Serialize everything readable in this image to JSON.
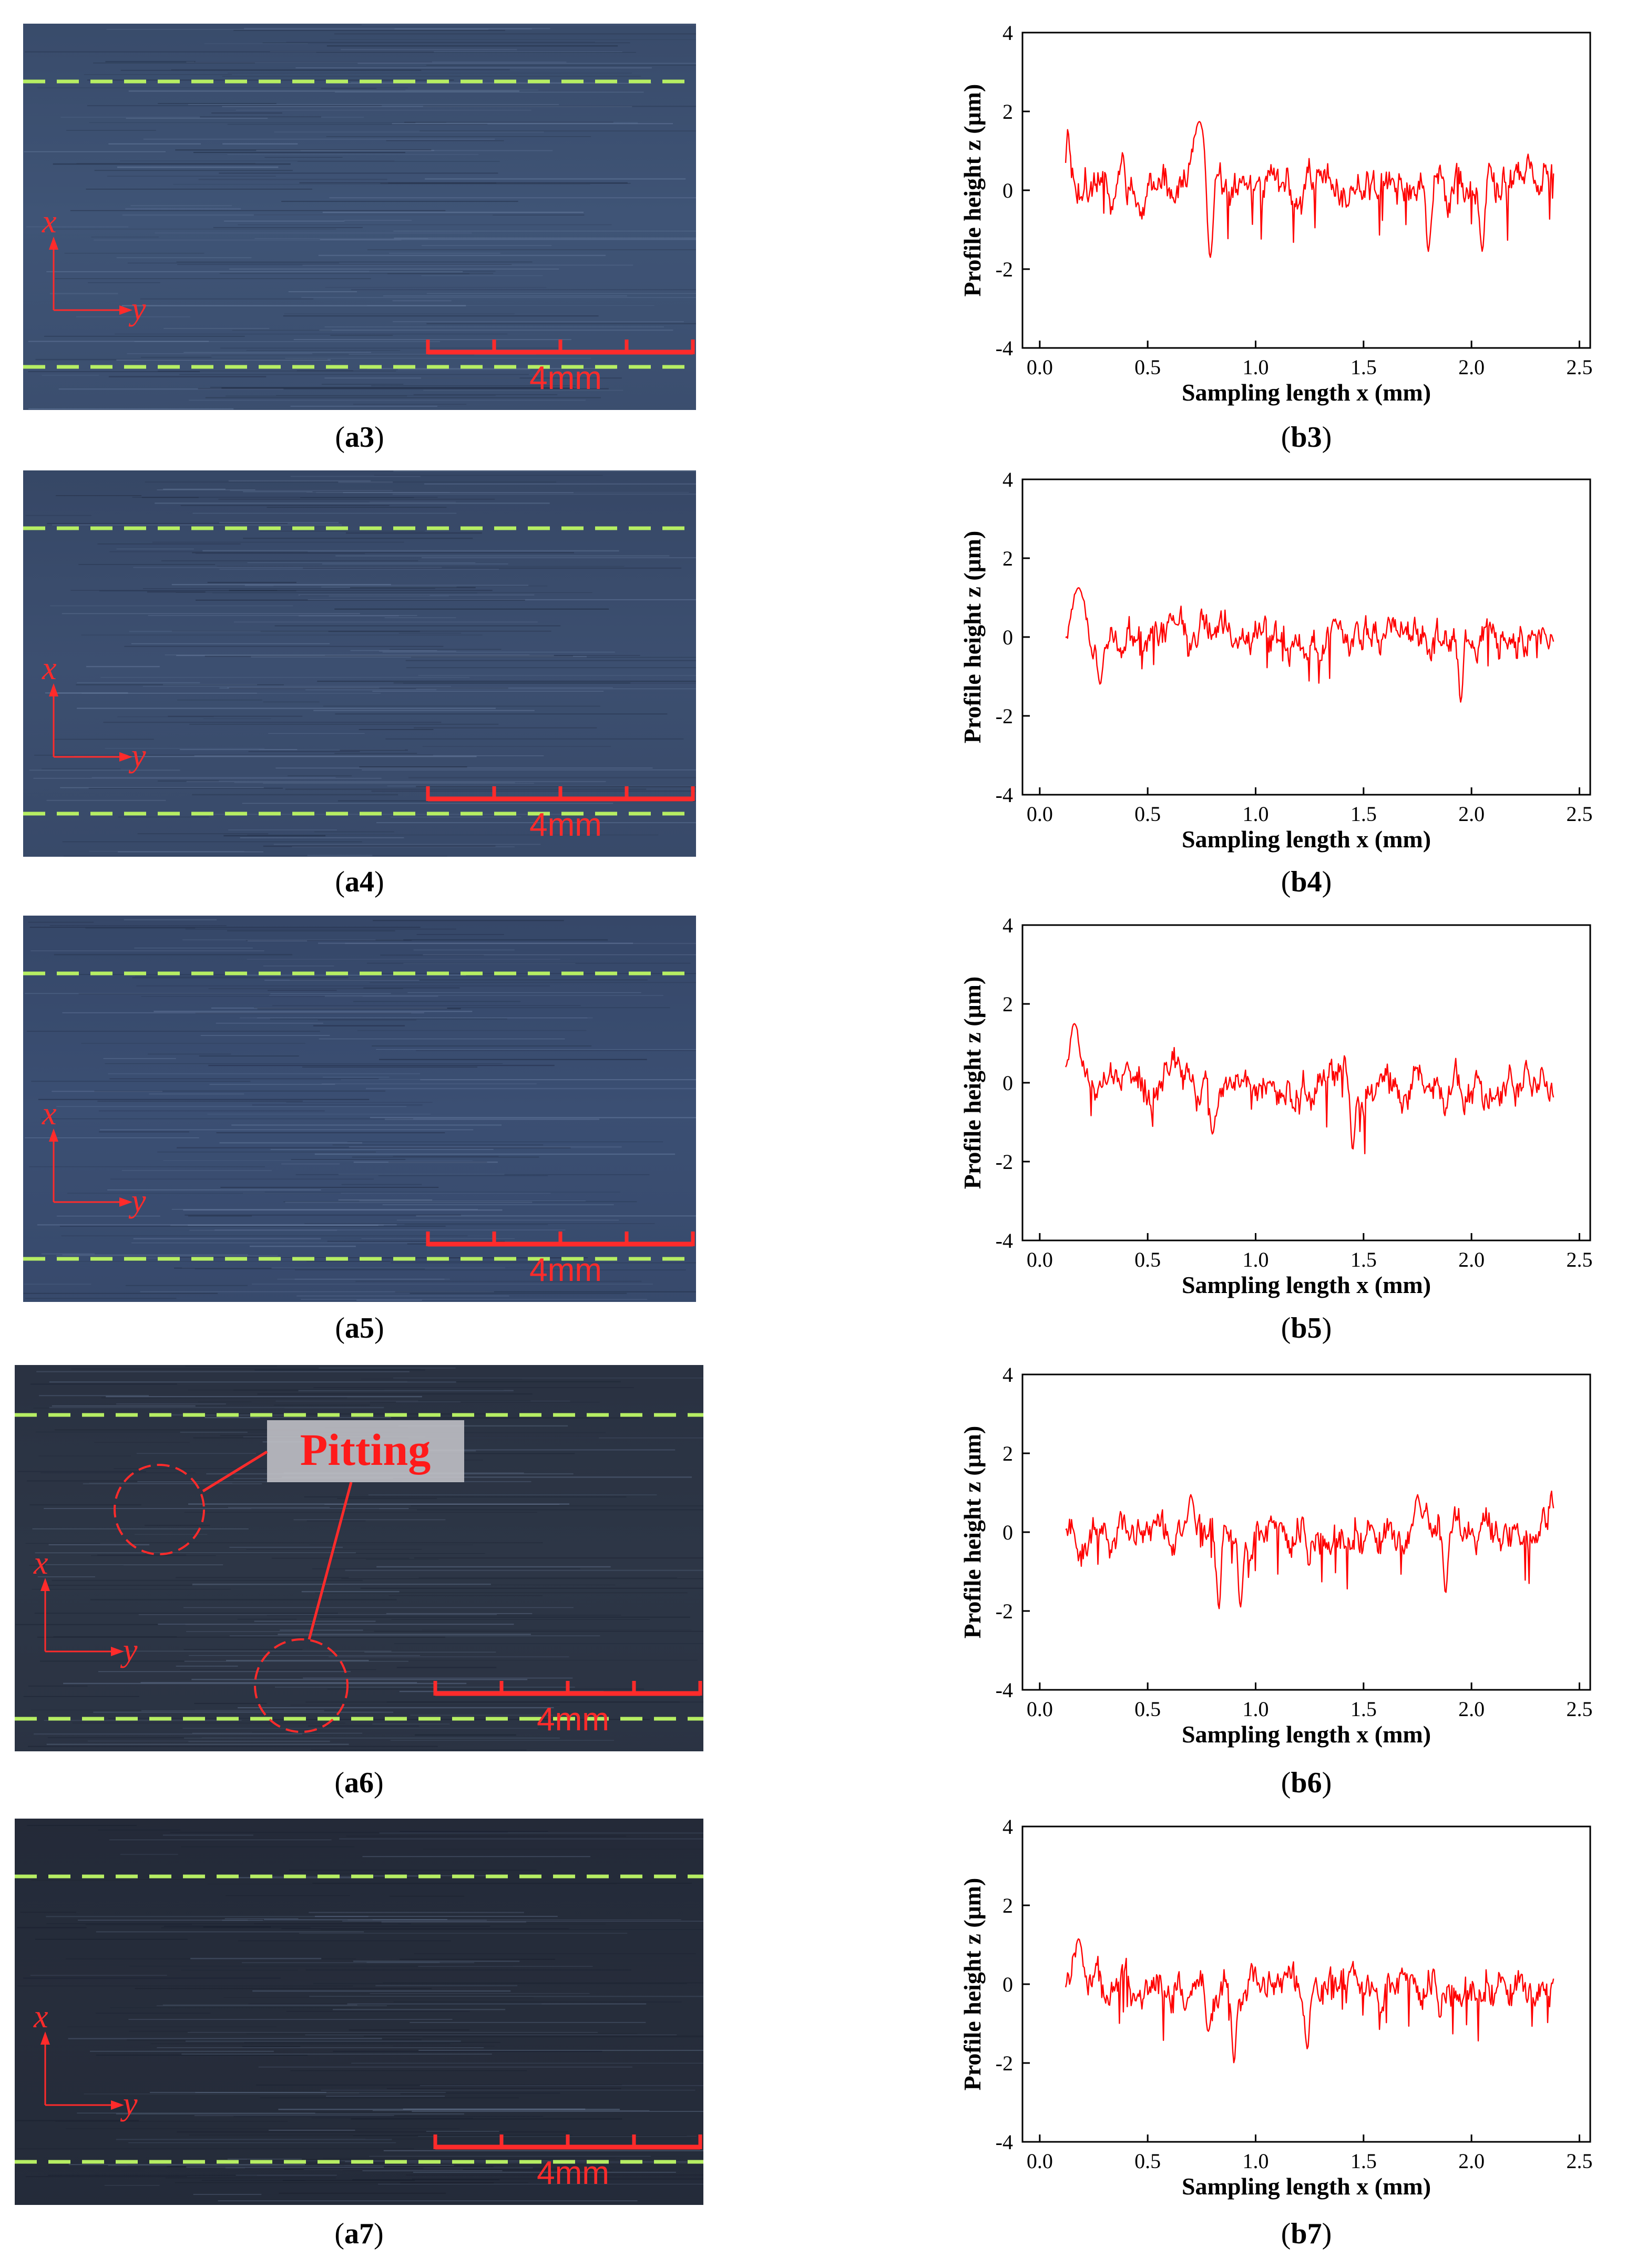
{
  "panels": [
    {
      "micro": {
        "label": "a3",
        "scale_label": "4mm",
        "axis_x": "x",
        "axis_y": "y",
        "annotation": null,
        "tone": "#3f5476"
      },
      "chart": {
        "label": "b3",
        "seed": 3,
        "base_offset": 0.2,
        "features": [
          {
            "x": 0.74,
            "z": 1.75,
            "w": 0.04
          },
          {
            "x": 0.79,
            "z": -1.7,
            "w": 0.02
          },
          {
            "x": 1.8,
            "z": -1.55,
            "w": 0.015
          },
          {
            "x": 2.05,
            "z": -1.55,
            "w": 0.015
          },
          {
            "x": 0.13,
            "z": 1.55,
            "w": 0.01
          }
        ]
      }
    },
    {
      "micro": {
        "label": "a4",
        "scale_label": "4mm",
        "axis_x": "x",
        "axis_y": "y",
        "annotation": null,
        "tone": "#3c4f70"
      },
      "chart": {
        "label": "b4",
        "seed": 4,
        "base_offset": 0.0,
        "features": [
          {
            "x": 0.18,
            "z": 1.25,
            "w": 0.04
          },
          {
            "x": 1.95,
            "z": -1.65,
            "w": 0.015
          },
          {
            "x": 0.28,
            "z": -1.2,
            "w": 0.02
          }
        ]
      }
    },
    {
      "micro": {
        "label": "a5",
        "scale_label": "4mm",
        "axis_x": "x",
        "axis_y": "y",
        "annotation": null,
        "tone": "#3b4f73"
      },
      "chart": {
        "label": "b5",
        "seed": 5,
        "base_offset": -0.05,
        "features": [
          {
            "x": 0.16,
            "z": 1.5,
            "w": 0.03
          },
          {
            "x": 1.45,
            "z": -1.7,
            "w": 0.015
          },
          {
            "x": 0.8,
            "z": -1.3,
            "w": 0.015
          }
        ]
      }
    },
    {
      "micro": {
        "label": "a6",
        "scale_label": "4mm",
        "axis_x": "x",
        "axis_y": "y",
        "annotation": "Pitting",
        "tone": "#2d3646"
      },
      "chart": {
        "label": "b6",
        "seed": 6,
        "base_offset": 0.0,
        "features": [
          {
            "x": 0.83,
            "z": -1.95,
            "w": 0.015
          },
          {
            "x": 0.93,
            "z": -1.9,
            "w": 0.015
          },
          {
            "x": 1.88,
            "z": -1.55,
            "w": 0.015
          },
          {
            "x": 2.37,
            "z": 1.05,
            "w": 0.01
          },
          {
            "x": 0.7,
            "z": 0.95,
            "w": 0.02
          },
          {
            "x": 1.75,
            "z": 0.95,
            "w": 0.02
          }
        ]
      }
    },
    {
      "micro": {
        "label": "a7",
        "scale_label": "4mm",
        "axis_x": "x",
        "axis_y": "y",
        "annotation": null,
        "tone": "#262d3b"
      },
      "chart": {
        "label": "b7",
        "seed": 7,
        "base_offset": 0.0,
        "features": [
          {
            "x": 0.18,
            "z": 1.15,
            "w": 0.03
          },
          {
            "x": 0.9,
            "z": -2.0,
            "w": 0.015
          },
          {
            "x": 1.24,
            "z": -1.65,
            "w": 0.015
          },
          {
            "x": 0.78,
            "z": -1.2,
            "w": 0.015
          }
        ]
      }
    }
  ],
  "chart_common": {
    "type": "line",
    "xlabel": "Sampling length x (mm)",
    "ylabel": "Profile height z (μm)",
    "xlim": [
      -0.08,
      2.55
    ],
    "ylim": [
      -4,
      4
    ],
    "xticks": [
      "0.0",
      "0.5",
      "1.0",
      "1.5",
      "2.0",
      "2.5"
    ],
    "yticks": [
      "4",
      "2",
      "0",
      "-2",
      "-4"
    ],
    "x_range": [
      0.12,
      2.38
    ],
    "n_points": 500,
    "line_color": "#ff0000",
    "grid": false,
    "legend": "none"
  },
  "chart_data": [
    {
      "type": "line",
      "xlabel": "Sampling length x (mm)",
      "ylabel": "Profile height z (μm)",
      "xlim": [
        -0.08,
        2.55
      ],
      "ylim": [
        -4,
        4
      ],
      "series": [
        {
          "x": [
            0.12,
            0.3,
            0.5,
            0.74,
            0.79,
            1.0,
            1.2,
            1.5,
            1.8,
            2.05,
            2.38
          ],
          "values": [
            0.5,
            0.2,
            0.3,
            1.75,
            -1.7,
            0.1,
            0.7,
            0.3,
            -1.55,
            -1.55,
            0.6
          ]
        }
      ]
    },
    {
      "type": "line",
      "xlabel": "Sampling length x (mm)",
      "ylabel": "Profile height z (μm)",
      "xlim": [
        -0.08,
        2.55
      ],
      "ylim": [
        -4,
        4
      ],
      "series": [
        {
          "x": [
            0.12,
            0.18,
            0.28,
            0.5,
            1.0,
            1.5,
            1.95,
            2.38
          ],
          "values": [
            -0.5,
            1.25,
            -1.2,
            0.3,
            0.2,
            0.2,
            -1.65,
            0.2
          ]
        }
      ]
    },
    {
      "type": "line",
      "xlabel": "Sampling length x (mm)",
      "ylabel": "Profile height z (μm)",
      "xlim": [
        -0.08,
        2.55
      ],
      "ylim": [
        -4,
        4
      ],
      "series": [
        {
          "x": [
            0.12,
            0.16,
            0.5,
            0.8,
            1.0,
            1.45,
            1.55,
            2.0,
            2.38
          ],
          "values": [
            -0.5,
            1.5,
            0.3,
            -1.3,
            0.0,
            -1.7,
            0.9,
            0.0,
            0.1
          ]
        }
      ]
    },
    {
      "type": "line",
      "xlabel": "Sampling length x (mm)",
      "ylabel": "Profile height z (μm)",
      "xlim": [
        -0.08,
        2.55
      ],
      "ylim": [
        -4,
        4
      ],
      "series": [
        {
          "x": [
            0.12,
            0.5,
            0.7,
            0.83,
            0.93,
            1.5,
            1.75,
            1.88,
            2.37
          ],
          "values": [
            -0.5,
            0.2,
            0.95,
            -1.95,
            -1.9,
            0.4,
            0.95,
            -1.55,
            1.05
          ]
        }
      ]
    },
    {
      "type": "line",
      "xlabel": "Sampling length x (mm)",
      "ylabel": "Profile height z (μm)",
      "xlim": [
        -0.08,
        2.55
      ],
      "ylim": [
        -4,
        4
      ],
      "series": [
        {
          "x": [
            0.12,
            0.18,
            0.5,
            0.78,
            0.9,
            1.24,
            1.5,
            2.0,
            2.38
          ],
          "values": [
            -0.3,
            1.15,
            0.3,
            -1.2,
            -2.0,
            -1.65,
            0.3,
            0.2,
            0.0
          ]
        }
      ]
    }
  ]
}
